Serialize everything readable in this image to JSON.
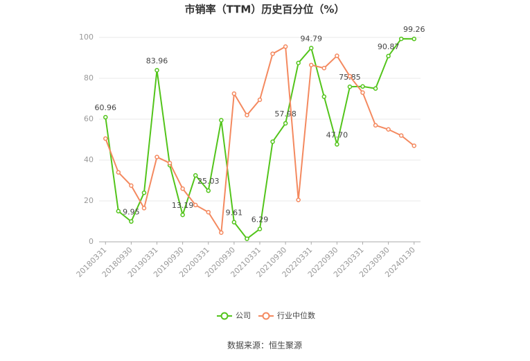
{
  "chart_data": {
    "type": "line",
    "title": "市销率（TTM）历史百分位（%）",
    "categories": [
      "20180331",
      null,
      "20180930",
      null,
      "20190331",
      null,
      "20190930",
      null,
      "20200331",
      null,
      "20200930",
      null,
      "20210331",
      null,
      "20210930",
      null,
      "20220331",
      null,
      "20220930",
      null,
      "20230331",
      null,
      "20230930",
      null,
      "20240130"
    ],
    "series": [
      {
        "name": "公司",
        "color": "#52c41a",
        "values": [
          60.96,
          15,
          9.95,
          24,
          83.96,
          37.5,
          13.19,
          32.5,
          25.03,
          59.5,
          9.61,
          1.5,
          6.29,
          49,
          57.98,
          87.5,
          94.79,
          71,
          47.7,
          75.85,
          76,
          75,
          90.87,
          99.3,
          99.26
        ],
        "value_labels": [
          "60.96",
          null,
          "9.95",
          null,
          "83.96",
          null,
          "13.19",
          null,
          "25.03",
          null,
          "9.61",
          null,
          "6.29",
          null,
          "57.98",
          null,
          "94.79",
          null,
          "47.70",
          "75.85",
          null,
          null,
          "90.87",
          null,
          "99.26"
        ]
      },
      {
        "name": "行业中位数",
        "color": "#f4895f",
        "values": [
          50.5,
          34,
          27.5,
          16.5,
          41.5,
          38.5,
          26,
          18,
          14.5,
          4.5,
          72.5,
          62,
          69.5,
          92,
          95.5,
          20.5,
          86.5,
          85,
          91,
          81,
          73,
          57,
          55,
          52,
          47
        ]
      }
    ],
    "ylim": [
      0,
      100
    ],
    "yticks": [
      0,
      20,
      40,
      60,
      80,
      100
    ],
    "grid": true,
    "source": "数据来源：恒生聚源"
  }
}
